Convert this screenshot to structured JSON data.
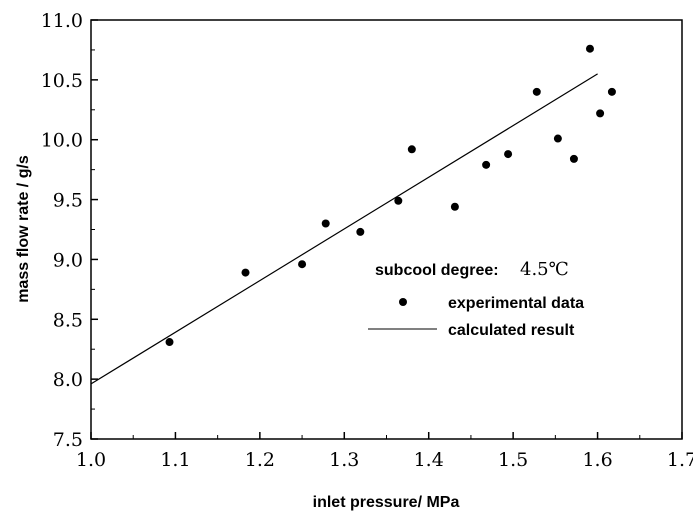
{
  "chart_data": {
    "type": "scatter",
    "xlabel": "inlet pressure/ MPa",
    "ylabel": "mass flow rate / g/s",
    "xlim": [
      1.0,
      1.7
    ],
    "ylim": [
      7.5,
      11.0
    ],
    "x_ticks": [
      "1.0",
      "1.1",
      "1.2",
      "1.3",
      "1.4",
      "1.5",
      "1.6",
      "1.7"
    ],
    "y_ticks": [
      "7.5",
      "8.0",
      "8.5",
      "9.0",
      "9.5",
      "10.0",
      "10.5",
      "11.0"
    ],
    "grid": false,
    "legend_position": "center-right",
    "annotation": {
      "label": "subcool degree:",
      "value": "4.5℃"
    },
    "series": [
      {
        "name": "experimental data",
        "kind": "points",
        "points": [
          {
            "x": 1.093,
            "y": 8.31
          },
          {
            "x": 1.183,
            "y": 8.89
          },
          {
            "x": 1.25,
            "y": 8.96
          },
          {
            "x": 1.278,
            "y": 9.3
          },
          {
            "x": 1.319,
            "y": 9.23
          },
          {
            "x": 1.364,
            "y": 9.49
          },
          {
            "x": 1.38,
            "y": 9.92
          },
          {
            "x": 1.431,
            "y": 9.44
          },
          {
            "x": 1.468,
            "y": 9.79
          },
          {
            "x": 1.494,
            "y": 9.88
          },
          {
            "x": 1.528,
            "y": 10.4
          },
          {
            "x": 1.553,
            "y": 10.01
          },
          {
            "x": 1.572,
            "y": 9.84
          },
          {
            "x": 1.591,
            "y": 10.76
          },
          {
            "x": 1.603,
            "y": 10.22
          },
          {
            "x": 1.617,
            "y": 10.4
          }
        ]
      },
      {
        "name": "calculated result",
        "kind": "line",
        "points": [
          {
            "x": 1.0,
            "y": 7.96
          },
          {
            "x": 1.6,
            "y": 10.55
          }
        ]
      }
    ]
  }
}
